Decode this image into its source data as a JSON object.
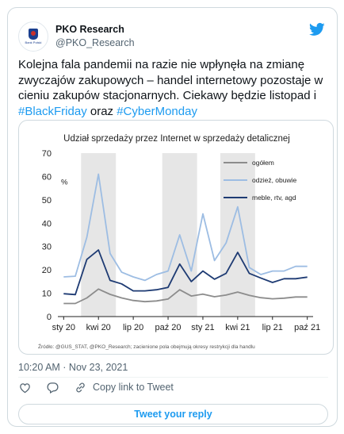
{
  "user": {
    "name": "PKO Research",
    "handle": "@PKO_Research",
    "avatar_text": "Bank Polski"
  },
  "tweet": {
    "text_1": "Kolejna fala pandemii na razie nie wpłynęła na zmianę zwyczajów zakupowych – handel internetowy pozostaje w cieniu zakupów stacjonarnych. Ciekawy będzie listopad i ",
    "hashtag_1": "#BlackFriday",
    "text_2": " oraz ",
    "hashtag_2": "#CyberMonday"
  },
  "timestamp": "10:20 AM · Nov 23, 2021",
  "actions": {
    "copy_link_label": "Copy link to Tweet"
  },
  "reply_button_label": "Tweet your reply",
  "icons": {
    "brand": "twitter-bird-icon",
    "like": "heart-icon",
    "reply": "comment-icon",
    "copy": "link-icon"
  },
  "colors": {
    "accent": "#1d9bf0",
    "series_total": "#8c8c8c",
    "series_clothing": "#9dbde3",
    "series_furniture": "#1e3b73",
    "shade": "#e6e6e6"
  },
  "chart_data": {
    "type": "line",
    "title": "Udział sprzedaży przez Internet w sprzedaży detalicznej",
    "ylabel": "%",
    "ylim": [
      0,
      70
    ],
    "yticks": [
      0,
      10,
      20,
      30,
      40,
      50,
      60,
      70
    ],
    "x": [
      "2020-01",
      "2020-02",
      "2020-03",
      "2020-04",
      "2020-05",
      "2020-06",
      "2020-07",
      "2020-08",
      "2020-09",
      "2020-10",
      "2020-11",
      "2020-12",
      "2021-01",
      "2021-02",
      "2021-03",
      "2021-04",
      "2021-05",
      "2021-06",
      "2021-07",
      "2021-08",
      "2021-09",
      "2021-10"
    ],
    "xtick_labels": [
      "sty 20",
      "kwi 20",
      "lip 20",
      "paź 20",
      "sty 21",
      "kwi 21",
      "lip 21",
      "paź 21"
    ],
    "shaded_periods": [
      [
        "2020-03",
        "2020-05"
      ],
      [
        "2020-10",
        "2020-12"
      ],
      [
        "2021-03",
        "2021-05"
      ]
    ],
    "series": [
      {
        "name": "ogółem",
        "values": [
          5.6,
          5.6,
          8.0,
          11.8,
          9.5,
          8.0,
          6.9,
          6.4,
          6.7,
          7.5,
          11.5,
          8.8,
          9.6,
          8.5,
          9.2,
          10.5,
          9.1,
          8.1,
          7.6,
          7.9,
          8.4,
          8.4
        ]
      },
      {
        "name": "odzież, obuwie",
        "values": [
          17.0,
          17.3,
          34.0,
          61.0,
          27.0,
          19.0,
          17.0,
          15.5,
          18.0,
          19.5,
          35.0,
          19.5,
          44.0,
          24.0,
          31.5,
          47.0,
          21.0,
          18.0,
          19.5,
          19.5,
          21.5,
          21.5
        ]
      },
      {
        "name": "meble, rtv, agd",
        "values": [
          9.8,
          9.4,
          24.5,
          28.5,
          15.5,
          14.0,
          11.0,
          11.0,
          11.5,
          12.5,
          22.5,
          15.0,
          19.5,
          16.0,
          18.5,
          27.5,
          18.5,
          16.5,
          14.6,
          16.2,
          16.2,
          16.9
        ]
      }
    ],
    "legend_placement": "top-right",
    "grid": false,
    "source": "Źródło: @GUS_STAT, @PKO_Research; zacienione pola obejmują okresy restrykcji dla handlu"
  }
}
